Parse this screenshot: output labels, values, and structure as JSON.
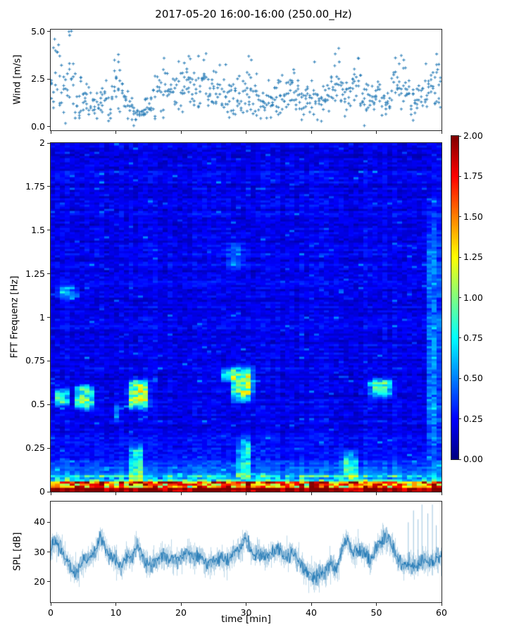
{
  "title": "2017-05-20 16:00-16:00 (250.00_Hz)",
  "colors": {
    "series_blue": "#1f77b4",
    "axis_line": "#262626",
    "background": "#ffffff",
    "colormap_low": "#00007f",
    "colormap_high": "#7f0000"
  },
  "chart_data": [
    {
      "id": "wind",
      "type": "scatter",
      "marker": "plus",
      "ylabel": "Wind [m/s]",
      "yticks": {
        "values": [
          0.0,
          2.5,
          5.0
        ],
        "labels": [
          "0.0",
          "2.5",
          "5.0"
        ]
      },
      "ylim": [
        -0.2,
        5.1
      ],
      "xlim": [
        0,
        60
      ],
      "xticks": {
        "values": [
          0,
          10,
          20,
          30,
          40,
          50,
          60
        ]
      },
      "envelope": {
        "t_step": 1,
        "mean": [
          2.3,
          2.9,
          1.6,
          2.6,
          1.1,
          1.8,
          1.3,
          1.0,
          1.6,
          1.4,
          2.3,
          2.0,
          1.3,
          0.8,
          0.8,
          1.1,
          1.8,
          2.3,
          2.0,
          1.7,
          2.2,
          2.4,
          2.0,
          2.2,
          1.8,
          1.6,
          2.2,
          1.6,
          1.3,
          1.5,
          1.9,
          2.1,
          1.5,
          1.2,
          1.5,
          1.3,
          1.6,
          1.9,
          1.5,
          1.2,
          1.7,
          1.4,
          1.2,
          2.0,
          2.3,
          1.7,
          1.5,
          2.4,
          2.0,
          1.5,
          1.8,
          1.5,
          1.3,
          2.2,
          2.3,
          1.5,
          1.2,
          1.4,
          1.8,
          2.1,
          2.2
        ],
        "spread": [
          0.9,
          1.2,
          0.7,
          1.2,
          0.5,
          0.6,
          0.5,
          0.4,
          0.5,
          0.5,
          0.7,
          0.6,
          0.5,
          0.3,
          0.3,
          0.4,
          0.6,
          0.7,
          0.6,
          0.6,
          0.7,
          0.7,
          0.6,
          0.7,
          0.6,
          0.6,
          0.7,
          0.6,
          0.5,
          0.6,
          0.8,
          0.8,
          0.5,
          0.4,
          0.5,
          0.5,
          0.5,
          0.6,
          0.5,
          0.4,
          0.6,
          0.5,
          0.4,
          0.6,
          0.7,
          0.6,
          0.5,
          0.7,
          0.6,
          0.5,
          0.6,
          0.5,
          0.5,
          0.7,
          0.7,
          0.5,
          0.4,
          0.5,
          0.6,
          0.7,
          0.7
        ]
      },
      "outliers": [
        [
          0.6,
          4.6
        ],
        [
          1.2,
          4.3
        ],
        [
          2.8,
          5.0
        ],
        [
          2.9,
          4.8
        ],
        [
          10.4,
          3.4
        ],
        [
          17.4,
          3.6
        ],
        [
          21.2,
          3.7
        ],
        [
          23.5,
          3.5
        ],
        [
          30.4,
          3.7
        ],
        [
          30.8,
          3.5
        ],
        [
          37.3,
          3.0
        ],
        [
          40.5,
          3.4
        ],
        [
          43.6,
          3.2
        ],
        [
          44.3,
          3.4
        ],
        [
          47.2,
          3.6
        ],
        [
          53.5,
          3.3
        ],
        [
          54.2,
          3.5
        ],
        [
          57.6,
          3.3
        ],
        [
          59.4,
          3.0
        ]
      ]
    },
    {
      "id": "spectrogram",
      "type": "heatmap",
      "colormap": "jet",
      "clim": [
        0,
        2
      ],
      "xlim": [
        0,
        60
      ],
      "ylim": [
        0,
        2
      ],
      "ylabel": "FFT Frequenz [Hz]",
      "yticks": {
        "values": [
          0,
          0.25,
          0.5,
          0.75,
          1,
          1.25,
          1.5,
          1.75,
          2
        ],
        "labels": [
          "0",
          "0.25",
          "0.5",
          "0.75",
          "1",
          "1.25",
          "1.5",
          "1.75",
          "2"
        ]
      },
      "xticks": {
        "values": [
          0,
          10,
          20,
          30,
          40,
          50,
          60
        ]
      },
      "n_time_bins": 80,
      "n_freq_bins": 165,
      "background_level": 0.215,
      "noise_amplitude": 0.16,
      "base_bands": [
        {
          "f0": 0.0,
          "f1": 0.022,
          "level": 2.0,
          "rand": 0.0
        },
        {
          "f0": 0.022,
          "f1": 0.055,
          "level": 0.9,
          "rand": 1.0
        },
        {
          "f0": 0.055,
          "f1": 0.1,
          "level": 0.5,
          "rand": 0.5
        },
        {
          "f0": 0.1,
          "f1": 0.32,
          "level": 0.22,
          "decay": 0.28,
          "tau": 0.09
        }
      ],
      "features": [
        {
          "t0": 0.3,
          "t1": 3.2,
          "f0": 0.48,
          "f1": 0.6,
          "amp": 0.55
        },
        {
          "t0": 3.5,
          "t1": 7.0,
          "f0": 0.46,
          "f1": 0.63,
          "amp": 0.75
        },
        {
          "t0": 11.5,
          "t1": 15.5,
          "f0": 0.46,
          "f1": 0.66,
          "amp": 0.95
        },
        {
          "t0": 27.5,
          "t1": 31.5,
          "f0": 0.5,
          "f1": 0.74,
          "amp": 0.85
        },
        {
          "t0": 26.0,
          "t1": 28.8,
          "f0": 0.62,
          "f1": 0.72,
          "amp": 0.5
        },
        {
          "t0": 48.5,
          "t1": 53.0,
          "f0": 0.53,
          "f1": 0.66,
          "amp": 0.7
        },
        {
          "t0": 1.0,
          "t1": 4.5,
          "f0": 1.09,
          "f1": 1.19,
          "amp": 0.4
        },
        {
          "t0": 9.8,
          "t1": 10.8,
          "f0": 0.4,
          "f1": 0.52,
          "amp": 0.4
        },
        {
          "t0": 57.5,
          "t1": 60.0,
          "f0": 0.05,
          "f1": 1.75,
          "amp": 0.3
        },
        {
          "t0": 12.0,
          "t1": 14.5,
          "f0": 0.03,
          "f1": 0.3,
          "amp": 0.5
        },
        {
          "t0": 28.5,
          "t1": 31.0,
          "f0": 0.02,
          "f1": 0.35,
          "amp": 0.45
        },
        {
          "t0": 44.5,
          "t1": 47.5,
          "f0": 0.03,
          "f1": 0.25,
          "amp": 0.5
        },
        {
          "t0": 27.0,
          "t1": 30.0,
          "f0": 1.25,
          "f1": 1.45,
          "amp": 0.25
        }
      ]
    },
    {
      "id": "spl",
      "type": "line",
      "ylabel": "SPL [dB]",
      "xlabel": "time [min]",
      "yticks": {
        "values": [
          20,
          30,
          40
        ],
        "labels": [
          "20",
          "30",
          "40"
        ]
      },
      "ylim": [
        13,
        47
      ],
      "xlim": [
        0,
        60
      ],
      "xticks": {
        "values": [
          0,
          10,
          20,
          30,
          40,
          50,
          60
        ],
        "labels": [
          "0",
          "10",
          "20",
          "30",
          "40",
          "50",
          "60"
        ]
      },
      "envelope": {
        "t": [
          0,
          0.8,
          1.3,
          2,
          3,
          3.8,
          5,
          6,
          7,
          7.6,
          8.4,
          9,
          10,
          10.7,
          11.5,
          12.5,
          13.2,
          14,
          15,
          16,
          17,
          18,
          19,
          20,
          21,
          22,
          23,
          24,
          25,
          26,
          27,
          28,
          29,
          29.8,
          30.5,
          31,
          32,
          33,
          34,
          35,
          36,
          37,
          38,
          39,
          40,
          41,
          42,
          43,
          44,
          44.8,
          45.5,
          46.3,
          47,
          47.8,
          48.5,
          49,
          49.8,
          50.5,
          51.3,
          52,
          52.8,
          53.5,
          54,
          55,
          56,
          57,
          58,
          59,
          60
        ],
        "v": [
          31,
          34,
          32,
          29,
          25,
          23,
          27,
          28,
          31,
          36,
          31,
          29,
          27,
          25,
          28,
          28,
          33,
          29,
          25,
          27,
          29,
          28,
          27,
          28,
          30,
          28,
          29,
          26,
          27,
          28,
          27,
          29,
          31,
          35,
          32,
          29,
          30,
          28,
          30,
          31,
          28,
          30,
          27,
          24,
          22,
          22,
          23,
          26,
          24,
          32,
          34,
          29,
          31,
          30,
          29,
          26,
          31,
          33,
          35,
          34,
          30,
          27,
          25,
          26,
          25,
          27,
          26,
          27,
          29
        ]
      },
      "band_halfwidth": 2.4,
      "spikes": [
        [
          54.9,
          40
        ],
        [
          55.7,
          44
        ],
        [
          56.4,
          41
        ],
        [
          57.0,
          46
        ],
        [
          57.9,
          43
        ],
        [
          58.6,
          46
        ],
        [
          59.2,
          39
        ]
      ]
    }
  ],
  "colorbar": {
    "colormap": "jet",
    "clim": [
      0,
      2
    ],
    "ticks": {
      "values": [
        0,
        0.25,
        0.5,
        0.75,
        1,
        1.25,
        1.5,
        1.75,
        2
      ],
      "labels": [
        "0.00",
        "0.25",
        "0.50",
        "0.75",
        "1.00",
        "1.25",
        "1.50",
        "1.75",
        "2.00"
      ]
    }
  }
}
